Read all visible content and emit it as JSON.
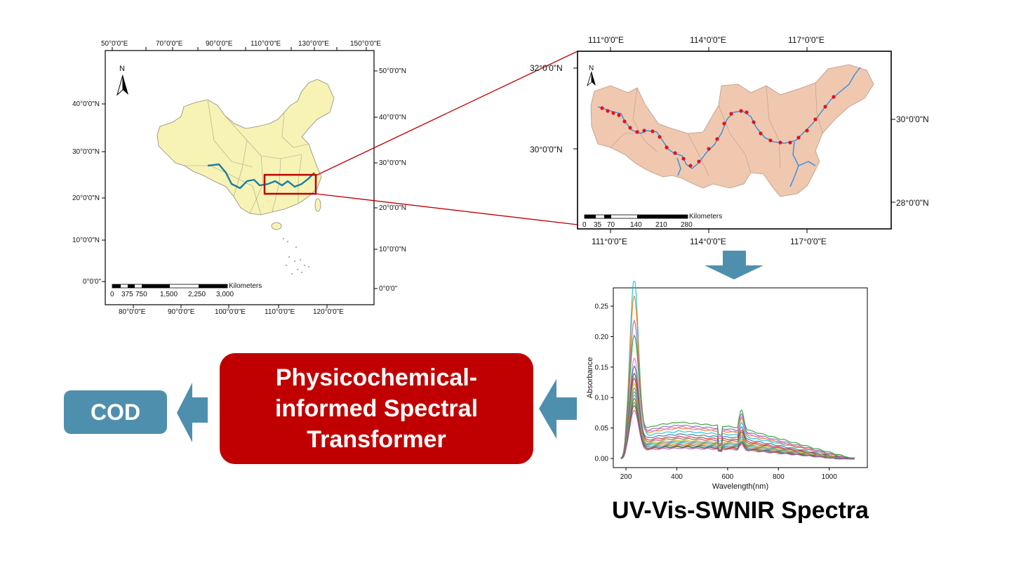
{
  "china_map": {
    "top_ticks": [
      "50°0'0\"E",
      "70°0'0\"E",
      "90°0'0\"E",
      "110°0'0\"E",
      "130°0'0\"E",
      "150°0'0\"E"
    ],
    "bottom_ticks": [
      "80°0'0\"E",
      "90°0'0\"E",
      "100°0'0\"E",
      "110°0'0\"E",
      "120°0'0\"E"
    ],
    "left_ticks": [
      "40°0'0\"N",
      "30°0'0\"N",
      "20°0'0\"N",
      "10°0'0\"N",
      "0°0'0\""
    ],
    "right_ticks": [
      "50°0'0\"N",
      "40°0'0\"N",
      "30°0'0\"N",
      "20°0'0\"N",
      "10°0'0\"N",
      "0°0'0\""
    ],
    "north_label": "N",
    "scale_unit": "Kilometers",
    "scale_values": [
      "0",
      "375",
      "750",
      "1,500",
      "2,250",
      "3,000"
    ],
    "land_color": "#f7f3b5",
    "river_color": "#1a7ea0",
    "highlight_color": "#c00000"
  },
  "basin_map": {
    "top_ticks": [
      "111°0'0\"E",
      "114°0'0\"E",
      "117°0'0\"E"
    ],
    "bottom_ticks": [
      "111°0'0\"E",
      "114°0'0\"E",
      "117°0'0\"E"
    ],
    "left_ticks": [
      "32°0'0\"N",
      "30°0'0\"N"
    ],
    "right_ticks": [
      "30°0'0\"N",
      "28°0'0\"N"
    ],
    "north_label": "N",
    "scale_unit": "Kilometers",
    "scale_values": [
      "0",
      "35",
      "70",
      "140",
      "210",
      "280"
    ],
    "basin_color": "#f0c8af",
    "river_color": "#2f8fe0",
    "site_color": "#e8101a"
  },
  "flow": {
    "arrow_color": "#4f8fae",
    "model_label_lines": [
      "Physicochemical-",
      "informed Spectral",
      "Transformer"
    ],
    "output_label": "COD",
    "spectra_caption": "UV-Vis-SWNIR Spectra"
  },
  "chart_data": {
    "type": "line",
    "xlabel": "Wavelength(nm)",
    "ylabel": "Absorbance",
    "xlim": [
      150,
      1150
    ],
    "ylim": [
      -0.015,
      0.28
    ],
    "xticks": [
      200,
      400,
      600,
      800,
      1000
    ],
    "yticks": [
      "0.00",
      "0.05",
      "0.10",
      "0.15",
      "0.20",
      "0.25"
    ],
    "ytick_values": [
      0,
      0.05,
      0.1,
      0.15,
      0.2,
      0.25
    ],
    "series": [
      {
        "color": "#17becf",
        "peak": 0.268,
        "mid": 0.045,
        "tail": 0.006
      },
      {
        "color": "#ff7f0e",
        "peak": 0.238,
        "mid": 0.05,
        "tail": 0.005
      },
      {
        "color": "#9467bd",
        "peak": 0.195,
        "mid": 0.055,
        "tail": 0.006
      },
      {
        "color": "#2ca02c",
        "peak": 0.168,
        "mid": 0.06,
        "tail": 0.008
      },
      {
        "color": "#e377c2",
        "peak": 0.135,
        "mid": 0.052,
        "tail": 0.004
      },
      {
        "color": "#1f77b4",
        "peak": 0.128,
        "mid": 0.04,
        "tail": 0.003
      },
      {
        "color": "#d62728",
        "peak": 0.118,
        "mid": 0.036,
        "tail": 0.002
      },
      {
        "color": "#8c564b",
        "peak": 0.112,
        "mid": 0.033,
        "tail": 0.002
      },
      {
        "color": "#bcbd22",
        "peak": 0.106,
        "mid": 0.03,
        "tail": 0.002
      },
      {
        "color": "#7f7f7f",
        "peak": 0.1,
        "mid": 0.028,
        "tail": 0.001
      },
      {
        "color": "#17becf",
        "peak": 0.095,
        "mid": 0.026,
        "tail": 0.001
      },
      {
        "color": "#ff7f0e",
        "peak": 0.09,
        "mid": 0.024,
        "tail": 0.001
      },
      {
        "color": "#1f77b4",
        "peak": 0.085,
        "mid": 0.022,
        "tail": 0.0
      },
      {
        "color": "#2ca02c",
        "peak": 0.08,
        "mid": 0.02,
        "tail": 0.0
      },
      {
        "color": "#d62728",
        "peak": 0.076,
        "mid": 0.019,
        "tail": 0.0
      },
      {
        "color": "#9467bd",
        "peak": 0.07,
        "mid": 0.017,
        "tail": 0.0
      }
    ]
  }
}
